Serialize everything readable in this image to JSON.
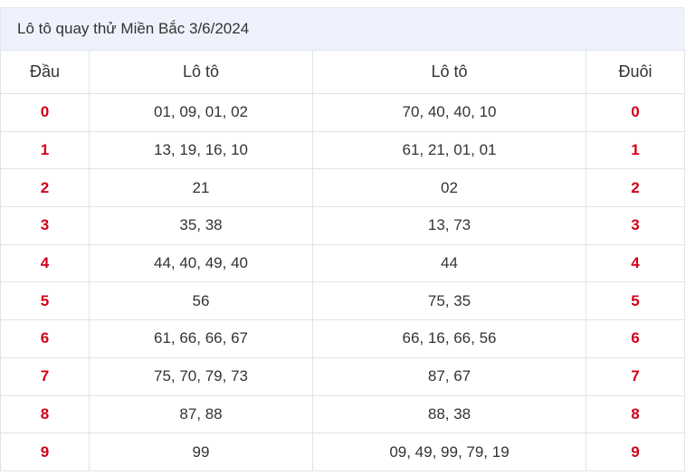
{
  "title": "Lô tô quay thử Miền Bắc 3/6/2024",
  "headers": {
    "dau": "Đầu",
    "loto1": "Lô tô",
    "loto2": "Lô tô",
    "duoi": "Đuôi"
  },
  "rows": [
    {
      "dau": "0",
      "loto1": "01, 09, 01, 02",
      "loto2": "70, 40, 40, 10",
      "duoi": "0"
    },
    {
      "dau": "1",
      "loto1": "13, 19, 16, 10",
      "loto2": "61, 21, 01, 01",
      "duoi": "1"
    },
    {
      "dau": "2",
      "loto1": "21",
      "loto2": "02",
      "duoi": "2"
    },
    {
      "dau": "3",
      "loto1": "35, 38",
      "loto2": "13, 73",
      "duoi": "3"
    },
    {
      "dau": "4",
      "loto1": "44, 40, 49, 40",
      "loto2": "44",
      "duoi": "4"
    },
    {
      "dau": "5",
      "loto1": "56",
      "loto2": "75, 35",
      "duoi": "5"
    },
    {
      "dau": "6",
      "loto1": "61, 66, 66, 67",
      "loto2": "66, 16, 66, 56",
      "duoi": "6"
    },
    {
      "dau": "7",
      "loto1": "75, 70, 79, 73",
      "loto2": "87, 67",
      "duoi": "7"
    },
    {
      "dau": "8",
      "loto1": "87, 88",
      "loto2": "88, 38",
      "duoi": "8"
    },
    {
      "dau": "9",
      "loto1": "99",
      "loto2": "09, 49, 99, 79, 19",
      "duoi": "9"
    }
  ],
  "colors": {
    "digit": "#d0021b",
    "title_background": "#edf2fc"
  }
}
